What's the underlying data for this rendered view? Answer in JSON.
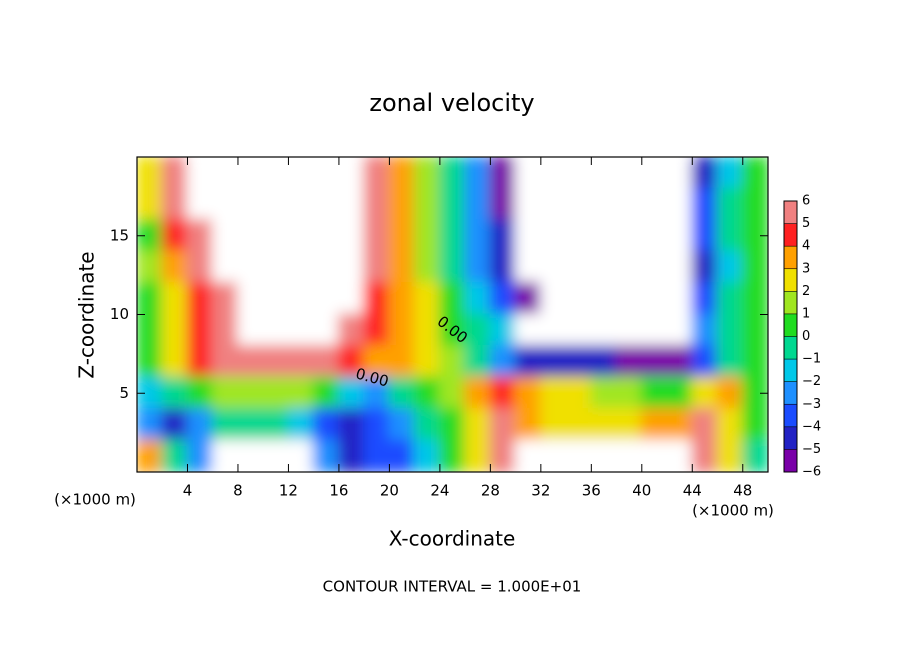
{
  "chart_data": {
    "type": "contour",
    "title": "zonal velocity",
    "x_label": "X-coordinate",
    "y_label": "Z-coordinate",
    "x_unit_left": "(×1000 m)",
    "x_unit_right": "(×1000 m)",
    "footnote": "CONTOUR INTERVAL = 1.000E+01",
    "contour_labels": [
      "0.00",
      "0.00"
    ],
    "xlim": [
      0,
      50
    ],
    "ylim": [
      0,
      20
    ],
    "xticks": [
      4,
      8,
      12,
      16,
      20,
      24,
      28,
      32,
      36,
      40,
      44,
      48
    ],
    "yticks": [
      5,
      10,
      15
    ],
    "zlim": [
      -6,
      6
    ],
    "zticks": [
      -6,
      -5,
      -4,
      -3,
      -2,
      -1,
      0,
      1,
      2,
      3,
      4,
      5,
      6
    ],
    "zticks_labels": [
      "−6",
      "−5",
      "−4",
      "−3",
      "−2",
      "−1",
      "0",
      "1",
      "2",
      "3",
      "4",
      "5",
      "6"
    ],
    "colors": [
      "#7a00a8",
      "#2222c4",
      "#1a4cff",
      "#1e90ff",
      "#00c8e8",
      "#00d890",
      "#20dc20",
      "#a0e620",
      "#f0e000",
      "#ffa000",
      "#ff2020",
      "#f08080"
    ],
    "x": [
      1,
      3,
      5,
      7,
      9,
      11,
      13,
      15,
      17,
      19,
      21,
      23,
      25,
      27,
      29,
      31,
      33,
      35,
      37,
      39,
      41,
      43,
      45,
      47,
      49
    ],
    "z": [
      19,
      17,
      15,
      13,
      11,
      9,
      7,
      5,
      3,
      1
    ],
    "values": [
      [
        2,
        6,
        10,
        10,
        10,
        10,
        10,
        10,
        10,
        5,
        3,
        1,
        -1,
        -3,
        -6,
        -10,
        -10,
        -10,
        -10,
        -10,
        -10,
        -10,
        -5,
        -2,
        0
      ],
      [
        2,
        5,
        10,
        10,
        10,
        10,
        10,
        10,
        10,
        5,
        3,
        1,
        -1,
        -3,
        -6,
        -10,
        -10,
        -10,
        -10,
        -10,
        -10,
        -10,
        -4,
        -1,
        0
      ],
      [
        0,
        4,
        6,
        10,
        10,
        10,
        10,
        10,
        10,
        5,
        3,
        1,
        -1,
        -3,
        -5,
        -10,
        -10,
        -10,
        -10,
        -10,
        -10,
        -10,
        -4,
        -1,
        0
      ],
      [
        1,
        3,
        5,
        10,
        10,
        10,
        10,
        10,
        10,
        5,
        3,
        1,
        -1,
        -3,
        -5,
        -10,
        -10,
        -10,
        -10,
        -10,
        -10,
        -10,
        -5,
        -2,
        0
      ],
      [
        0,
        2,
        4,
        6,
        10,
        10,
        10,
        10,
        10,
        4,
        3,
        2,
        0,
        -2,
        -4,
        -6,
        -10,
        -10,
        -10,
        -10,
        -10,
        -10,
        -4,
        -1,
        0
      ],
      [
        0,
        2,
        4,
        6,
        10,
        10,
        10,
        10,
        6,
        4,
        3,
        2,
        0,
        -1,
        -2,
        -10,
        -10,
        -10,
        -10,
        -10,
        -10,
        -10,
        -3,
        -1,
        0
      ],
      [
        0,
        2,
        4,
        5,
        5,
        5,
        5,
        5,
        4,
        3,
        3,
        2,
        1,
        -1,
        -3,
        -5,
        -5,
        -5,
        -5,
        -6,
        -6,
        -6,
        -4,
        -1,
        0
      ],
      [
        -2,
        -1,
        0,
        1,
        1,
        1,
        1,
        0,
        -2,
        -3,
        -1,
        0,
        1,
        3,
        4,
        3,
        2,
        2,
        1,
        1,
        0,
        0,
        2,
        3,
        0
      ],
      [
        -3,
        -5,
        -3,
        -1,
        -1,
        -1,
        -2,
        -4,
        -5,
        -4,
        -3,
        -1,
        0,
        2,
        5,
        3,
        2,
        2,
        2,
        2,
        3,
        3,
        5,
        2,
        0
      ],
      [
        3,
        -1,
        -3,
        -10,
        -10,
        -10,
        -10,
        -3,
        -5,
        -4,
        -4,
        -2,
        0,
        2,
        5,
        10,
        10,
        10,
        10,
        10,
        10,
        10,
        6,
        2,
        -1
      ]
    ]
  }
}
